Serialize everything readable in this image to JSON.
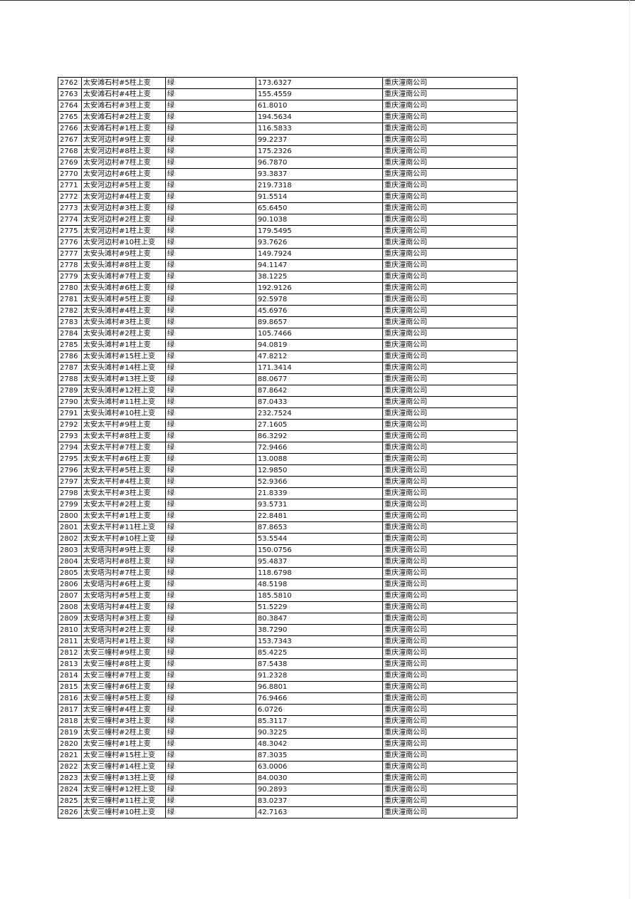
{
  "table": {
    "rows": [
      [
        "2762",
        "太安滩石村#5柱上变",
        "绿",
        "173.6327",
        "重庆潼南公司"
      ],
      [
        "2763",
        "太安滩石村#4柱上变",
        "绿",
        "155.4559",
        "重庆潼南公司"
      ],
      [
        "2764",
        "太安滩石村#3柱上变",
        "绿",
        "61.8010",
        "重庆潼南公司"
      ],
      [
        "2765",
        "太安滩石村#2柱上变",
        "绿",
        "194.5634",
        "重庆潼南公司"
      ],
      [
        "2766",
        "太安滩石村#1柱上变",
        "绿",
        "116.5833",
        "重庆潼南公司"
      ],
      [
        "2767",
        "太安河边村#9柱上变",
        "绿",
        "99.2237",
        "重庆潼南公司"
      ],
      [
        "2768",
        "太安河边村#8柱上变",
        "绿",
        "175.2326",
        "重庆潼南公司"
      ],
      [
        "2769",
        "太安河边村#7柱上变",
        "绿",
        "96.7870",
        "重庆潼南公司"
      ],
      [
        "2770",
        "太安河边村#6柱上变",
        "绿",
        "93.3837",
        "重庆潼南公司"
      ],
      [
        "2771",
        "太安河边村#5柱上变",
        "绿",
        "219.7318",
        "重庆潼南公司"
      ],
      [
        "2772",
        "太安河边村#4柱上变",
        "绿",
        "91.5514",
        "重庆潼南公司"
      ],
      [
        "2773",
        "太安河边村#3柱上变",
        "绿",
        "65.6450",
        "重庆潼南公司"
      ],
      [
        "2774",
        "太安河边村#2柱上变",
        "绿",
        "90.1038",
        "重庆潼南公司"
      ],
      [
        "2775",
        "太安河边村#1柱上变",
        "绿",
        "179.5495",
        "重庆潼南公司"
      ],
      [
        "2776",
        "太安河边村#10柱上变",
        "绿",
        "93.7626",
        "重庆潼南公司"
      ],
      [
        "2777",
        "太安头滩村#9柱上变",
        "绿",
        "149.7924",
        "重庆潼南公司"
      ],
      [
        "2778",
        "太安头滩村#8柱上变",
        "绿",
        "94.1147",
        "重庆潼南公司"
      ],
      [
        "2779",
        "太安头滩村#7柱上变",
        "绿",
        "38.1225",
        "重庆潼南公司"
      ],
      [
        "2780",
        "太安头滩村#6柱上变",
        "绿",
        "192.9126",
        "重庆潼南公司"
      ],
      [
        "2781",
        "太安头滩村#5柱上变",
        "绿",
        "92.5978",
        "重庆潼南公司"
      ],
      [
        "2782",
        "太安头滩村#4柱上变",
        "绿",
        "45.6976",
        "重庆潼南公司"
      ],
      [
        "2783",
        "太安头滩村#3柱上变",
        "绿",
        "89.8657",
        "重庆潼南公司"
      ],
      [
        "2784",
        "太安头滩村#2柱上变",
        "绿",
        "105.7466",
        "重庆潼南公司"
      ],
      [
        "2785",
        "太安头滩村#1柱上变",
        "绿",
        "94.0819",
        "重庆潼南公司"
      ],
      [
        "2786",
        "太安头滩村#15柱上变",
        "绿",
        "47.8212",
        "重庆潼南公司"
      ],
      [
        "2787",
        "太安头滩村#14柱上变",
        "绿",
        "171.3414",
        "重庆潼南公司"
      ],
      [
        "2788",
        "太安头滩村#13柱上变",
        "绿",
        "88.0677",
        "重庆潼南公司"
      ],
      [
        "2789",
        "太安头滩村#12柱上变",
        "绿",
        "87.8642",
        "重庆潼南公司"
      ],
      [
        "2790",
        "太安头滩村#11柱上变",
        "绿",
        "87.0433",
        "重庆潼南公司"
      ],
      [
        "2791",
        "太安头滩村#10柱上变",
        "绿",
        "232.7524",
        "重庆潼南公司"
      ],
      [
        "2792",
        "太安太平村#9柱上变",
        "绿",
        "27.1605",
        "重庆潼南公司"
      ],
      [
        "2793",
        "太安太平村#8柱上变",
        "绿",
        "86.3292",
        "重庆潼南公司"
      ],
      [
        "2794",
        "太安太平村#7柱上变",
        "绿",
        "72.9466",
        "重庆潼南公司"
      ],
      [
        "2795",
        "太安太平村#6柱上变",
        "绿",
        "13.0088",
        "重庆潼南公司"
      ],
      [
        "2796",
        "太安太平村#5柱上变",
        "绿",
        "12.9850",
        "重庆潼南公司"
      ],
      [
        "2797",
        "太安太平村#4柱上变",
        "绿",
        "52.9366",
        "重庆潼南公司"
      ],
      [
        "2798",
        "太安太平村#3柱上变",
        "绿",
        "21.8339",
        "重庆潼南公司"
      ],
      [
        "2799",
        "太安太平村#2柱上变",
        "绿",
        "93.5731",
        "重庆潼南公司"
      ],
      [
        "2800",
        "太安太平村#1柱上变",
        "绿",
        "22.8481",
        "重庆潼南公司"
      ],
      [
        "2801",
        "太安太平村#11柱上变",
        "绿",
        "87.8653",
        "重庆潼南公司"
      ],
      [
        "2802",
        "太安太平村#10柱上变",
        "绿",
        "53.5544",
        "重庆潼南公司"
      ],
      [
        "2803",
        "太安塔沟村#9柱上变",
        "绿",
        "150.0756",
        "重庆潼南公司"
      ],
      [
        "2804",
        "太安塔沟村#8柱上变",
        "绿",
        "95.4837",
        "重庆潼南公司"
      ],
      [
        "2805",
        "太安塔沟村#7柱上变",
        "绿",
        "118.6798",
        "重庆潼南公司"
      ],
      [
        "2806",
        "太安塔沟村#6柱上变",
        "绿",
        "48.5198",
        "重庆潼南公司"
      ],
      [
        "2807",
        "太安塔沟村#5柱上变",
        "绿",
        "185.5810",
        "重庆潼南公司"
      ],
      [
        "2808",
        "太安塔沟村#4柱上变",
        "绿",
        "51.5229",
        "重庆潼南公司"
      ],
      [
        "2809",
        "太安塔沟村#3柱上变",
        "绿",
        "80.3847",
        "重庆潼南公司"
      ],
      [
        "2810",
        "太安塔沟村#2柱上变",
        "绿",
        "38.7290",
        "重庆潼南公司"
      ],
      [
        "2811",
        "太安塔沟村#1柱上变",
        "绿",
        "153.7343",
        "重庆潼南公司"
      ],
      [
        "2812",
        "太安三幢村#9柱上变",
        "绿",
        "85.4225",
        "重庆潼南公司"
      ],
      [
        "2813",
        "太安三幢村#8柱上变",
        "绿",
        "87.5438",
        "重庆潼南公司"
      ],
      [
        "2814",
        "太安三幢村#7柱上变",
        "绿",
        "91.2328",
        "重庆潼南公司"
      ],
      [
        "2815",
        "太安三幢村#6柱上变",
        "绿",
        "96.8801",
        "重庆潼南公司"
      ],
      [
        "2816",
        "太安三幢村#5柱上变",
        "绿",
        "76.9466",
        "重庆潼南公司"
      ],
      [
        "2817",
        "太安三幢村#4柱上变",
        "绿",
        "6.0726",
        "重庆潼南公司"
      ],
      [
        "2818",
        "太安三幢村#3柱上变",
        "绿",
        "85.3117",
        "重庆潼南公司"
      ],
      [
        "2819",
        "太安三幢村#2柱上变",
        "绿",
        "90.3225",
        "重庆潼南公司"
      ],
      [
        "2820",
        "太安三幢村#1柱上变",
        "绿",
        "48.3042",
        "重庆潼南公司"
      ],
      [
        "2821",
        "太安三幢村#15柱上变",
        "绿",
        "87.3035",
        "重庆潼南公司"
      ],
      [
        "2822",
        "太安三幢村#14柱上变",
        "绿",
        "63.0006",
        "重庆潼南公司"
      ],
      [
        "2823",
        "太安三幢村#13柱上变",
        "绿",
        "84.0030",
        "重庆潼南公司"
      ],
      [
        "2824",
        "太安三幢村#12柱上变",
        "绿",
        "90.2893",
        "重庆潼南公司"
      ],
      [
        "2825",
        "太安三幢村#11柱上变",
        "绿",
        "83.0237",
        "重庆潼南公司"
      ],
      [
        "2826",
        "太安三幢村#10柱上变",
        "绿",
        "42.7163",
        "重庆潼南公司"
      ]
    ]
  }
}
